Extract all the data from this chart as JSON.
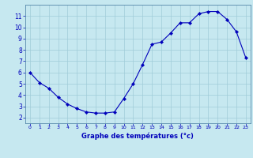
{
  "x": [
    0,
    1,
    2,
    3,
    4,
    5,
    6,
    7,
    8,
    9,
    10,
    11,
    12,
    13,
    14,
    15,
    16,
    17,
    18,
    19,
    20,
    21,
    22,
    23
  ],
  "y": [
    6.0,
    5.1,
    4.6,
    3.8,
    3.2,
    2.8,
    2.5,
    2.4,
    2.4,
    2.5,
    3.7,
    5.0,
    6.7,
    8.5,
    8.7,
    9.5,
    10.4,
    10.4,
    11.2,
    11.4,
    11.4,
    10.7,
    9.6,
    7.3
  ],
  "xlabel": "Graphe des températures (°c)",
  "bg_color": "#c6e8f0",
  "line_color": "#0000bb",
  "marker_color": "#0000bb",
  "grid_color": "#a0ccd8",
  "text_color": "#0000bb",
  "spine_color": "#5588aa",
  "xlim": [
    -0.5,
    23.5
  ],
  "ylim": [
    1.5,
    12.0
  ],
  "yticks": [
    2,
    3,
    4,
    5,
    6,
    7,
    8,
    9,
    10,
    11
  ],
  "xticks": [
    0,
    1,
    2,
    3,
    4,
    5,
    6,
    7,
    8,
    9,
    10,
    11,
    12,
    13,
    14,
    15,
    16,
    17,
    18,
    19,
    20,
    21,
    22,
    23
  ]
}
